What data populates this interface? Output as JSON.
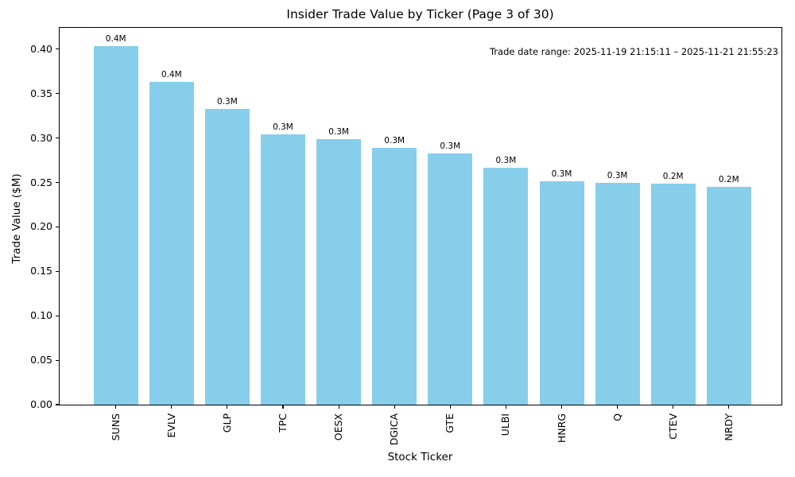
{
  "figure": {
    "background": "#ffffff"
  },
  "chart_data": {
    "type": "bar",
    "title": "Insider Trade Value by Ticker (Page 3 of 30)",
    "xlabel": "Stock Ticker",
    "ylabel": "Trade Value ($M)",
    "annotation": "Trade date range: 2025-11-19 21:15:11 – 2025-11-21 21:55:23",
    "categories": [
      "SUNS",
      "EVLV",
      "GLP",
      "TPC",
      "OESX",
      "DGICA",
      "GTE",
      "ULBI",
      "HNRG",
      "Q",
      "CTEV",
      "NRDY"
    ],
    "values": [
      0.403,
      0.363,
      0.333,
      0.304,
      0.299,
      0.289,
      0.283,
      0.267,
      0.251,
      0.25,
      0.249,
      0.245
    ],
    "bar_value_labels": [
      "0.4M",
      "0.4M",
      "0.3M",
      "0.3M",
      "0.3M",
      "0.3M",
      "0.3M",
      "0.3M",
      "0.3M",
      "0.3M",
      "0.2M",
      "0.2M"
    ],
    "yticks": [
      0.0,
      0.05,
      0.1,
      0.15,
      0.2,
      0.25,
      0.3,
      0.35,
      0.4
    ],
    "ytick_labels": [
      "0.00",
      "0.05",
      "0.10",
      "0.15",
      "0.20",
      "0.25",
      "0.30",
      "0.35",
      "0.40"
    ],
    "ylim": [
      0,
      0.424
    ],
    "bar_color": "#87CEEB",
    "axis_color": "#000000",
    "text_color": "#000000",
    "grid": false,
    "legend": false
  }
}
